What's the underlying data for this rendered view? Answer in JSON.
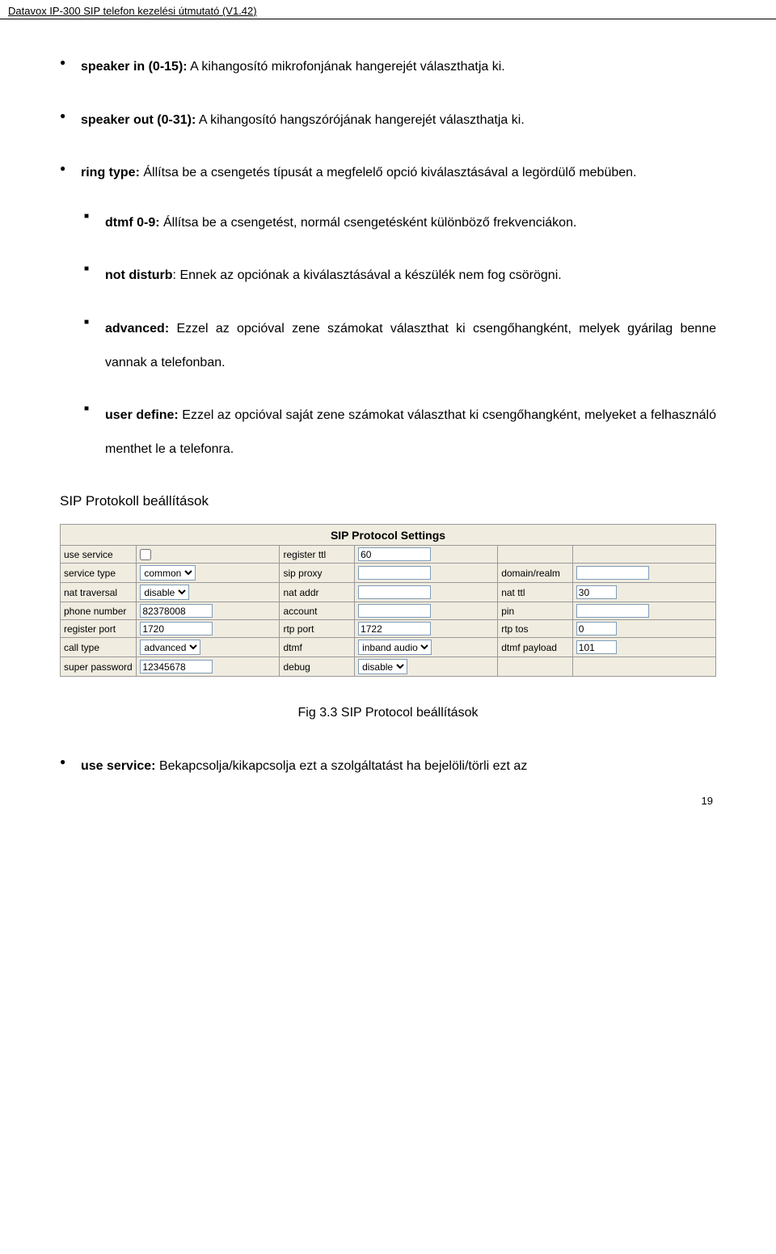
{
  "header": "Datavox IP-300 SIP telefon kezelési útmutató (V1.42)",
  "bullets": [
    {
      "bold": "speaker in (0-15):",
      "text": " A kihangosító mikrofonjának hangerejét választhatja ki."
    },
    {
      "bold": "speaker out (0-31):",
      "text": " A kihangosító hangszórójának hangerejét választhatja ki."
    },
    {
      "bold": "ring type:",
      "text": " Állítsa be a csengetés típusát a megfelelő opció kiválasztásával a legördülő mebüben."
    }
  ],
  "subs": [
    {
      "bold": "dtmf 0-9:",
      "text": " Állítsa be a csengetést, normál csengetésként különböző frekvenciákon."
    },
    {
      "bold": "not disturb",
      "text": ": Ennek az opciónak a kiválasztásával a készülék nem fog csörögni."
    },
    {
      "bold": "advanced:",
      "text": " Ezzel az opcióval zene számokat választhat ki csengőhangként, melyek gyárilag benne vannak a telefonban."
    },
    {
      "bold": "user define:",
      "text": " Ezzel az opcióval saját zene számokat választhat ki csengőhangként, melyeket a felhasználó menthet le a telefonra."
    }
  ],
  "section_title": "SIP Protokoll beállítások",
  "table": {
    "title": "SIP Protocol Settings",
    "rows": [
      {
        "c1": "use service",
        "t1": "checkbox",
        "v1": false,
        "c2": "register ttl",
        "t2": "text",
        "v2": "60",
        "c3": "",
        "t3": "none"
      },
      {
        "c1": "service type",
        "t1": "select",
        "v1": "common",
        "c2": "sip proxy",
        "t2": "text",
        "v2": "",
        "c3": "domain/realm",
        "t3": "text",
        "v3": ""
      },
      {
        "c1": "nat traversal",
        "t1": "select",
        "v1": "disable",
        "c2": "nat addr",
        "t2": "text",
        "v2": "",
        "c3": "nat ttl",
        "t3": "text-short",
        "v3": "30"
      },
      {
        "c1": "phone number",
        "t1": "text",
        "v1": "82378008",
        "c2": "account",
        "t2": "text",
        "v2": "",
        "c3": "pin",
        "t3": "text",
        "v3": ""
      },
      {
        "c1": "register port",
        "t1": "text",
        "v1": "1720",
        "c2": "rtp port",
        "t2": "text",
        "v2": "1722",
        "c3": "rtp tos",
        "t3": "text-short",
        "v3": "0"
      },
      {
        "c1": "call type",
        "t1": "select",
        "v1": "advanced",
        "c2": "dtmf",
        "t2": "select",
        "v2": "inband audio",
        "c3": "dtmf payload",
        "t3": "text-short",
        "v3": "101"
      },
      {
        "c1": "super password",
        "t1": "text",
        "v1": "12345678",
        "c2": "debug",
        "t2": "select",
        "v2": "disable",
        "c3": "",
        "t3": "none"
      }
    ]
  },
  "figcaption": "Fig 3.3 SIP Protocol beállítások",
  "last_bullet": {
    "bold": "use service:",
    "text": " Bekapcsolja/kikapcsolja ezt a szolgáltatást ha bejelöli/törli ezt az"
  },
  "page_number": "19"
}
